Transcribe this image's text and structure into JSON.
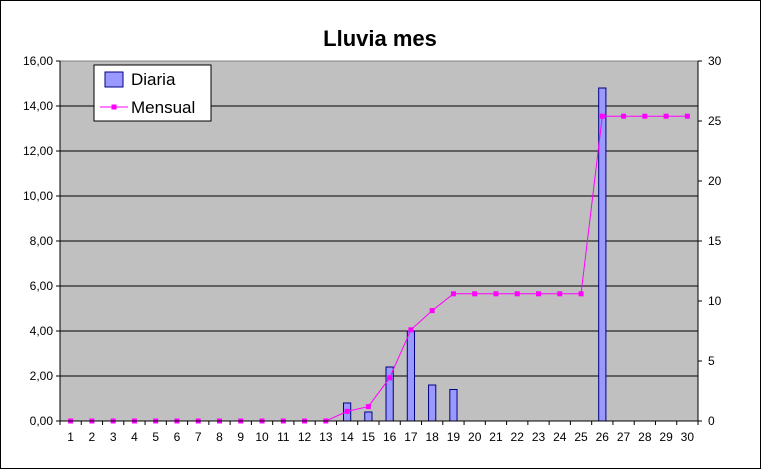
{
  "chart_data": {
    "type": "bar",
    "title": "Lluvia mes",
    "categories": [
      "1",
      "2",
      "3",
      "4",
      "5",
      "6",
      "7",
      "8",
      "9",
      "10",
      "11",
      "12",
      "13",
      "14",
      "15",
      "16",
      "17",
      "18",
      "19",
      "20",
      "21",
      "22",
      "23",
      "24",
      "25",
      "26",
      "27",
      "28",
      "29",
      "30"
    ],
    "y_left": {
      "min": 0,
      "max": 16,
      "ticks": [
        "0,00",
        "2,00",
        "4,00",
        "6,00",
        "8,00",
        "10,00",
        "12,00",
        "14,00",
        "16,00"
      ]
    },
    "y_right": {
      "min": 0,
      "max": 30,
      "ticks": [
        "0",
        "5",
        "10",
        "15",
        "20",
        "25",
        "30"
      ]
    },
    "series": [
      {
        "name": "Diaria",
        "type": "bar",
        "axis": "left",
        "color": "#9999ff",
        "values": [
          0,
          0,
          0,
          0,
          0,
          0,
          0,
          0,
          0,
          0,
          0,
          0,
          0,
          0.8,
          0.4,
          2.4,
          4.0,
          1.6,
          1.4,
          0,
          0,
          0,
          0,
          0,
          0,
          14.8,
          0,
          0,
          0,
          0
        ]
      },
      {
        "name": "Mensual",
        "type": "line",
        "axis": "right",
        "color": "#ff00ff",
        "values": [
          0,
          0,
          0,
          0,
          0,
          0,
          0,
          0,
          0,
          0,
          0,
          0,
          0,
          0.8,
          1.2,
          3.6,
          7.6,
          9.2,
          10.6,
          10.6,
          10.6,
          10.6,
          10.6,
          10.6,
          10.6,
          25.4,
          25.4,
          25.4,
          25.4,
          25.4
        ]
      }
    ],
    "grid": true,
    "legend": "top-left",
    "plot_background": "#c0c0c0"
  }
}
